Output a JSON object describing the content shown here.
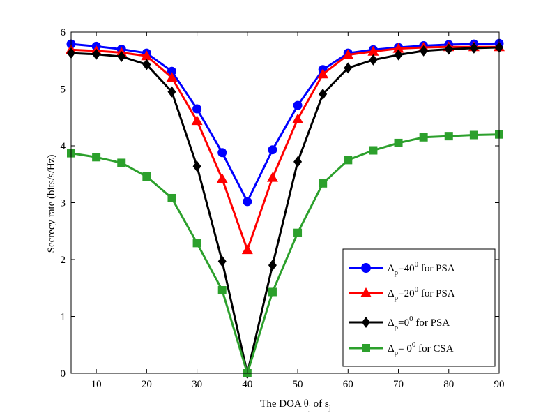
{
  "chart_data": {
    "type": "line",
    "title": "",
    "xlabel": {
      "prefix": "The DOA ",
      "symbol": "θ",
      "symbol_sub": "j",
      "middle": "  of s",
      "tail_sub": "j"
    },
    "ylabel": "Secrecy rate (bits/s/Hz)",
    "xlim": [
      5,
      90
    ],
    "ylim": [
      0,
      6
    ],
    "x_ticks": [
      10,
      20,
      30,
      40,
      50,
      60,
      70,
      80,
      90
    ],
    "y_ticks": [
      0,
      1,
      2,
      3,
      4,
      5,
      6
    ],
    "grid": false,
    "legend_position": "lower-right",
    "x": [
      5,
      10,
      15,
      20,
      25,
      30,
      35,
      40,
      45,
      50,
      55,
      60,
      65,
      70,
      75,
      80,
      85,
      90
    ],
    "series": [
      {
        "name": "Δp=40^0 for PSA",
        "legend": {
          "delta": "Δ",
          "sub": "p",
          "mid": "=40",
          "sup": "0",
          "tail": " for PSA"
        },
        "color": "#0000ff",
        "marker": "circle",
        "values": [
          5.79,
          5.75,
          5.7,
          5.63,
          5.31,
          4.65,
          3.88,
          3.02,
          3.93,
          4.71,
          5.34,
          5.63,
          5.69,
          5.73,
          5.76,
          5.78,
          5.79,
          5.8
        ]
      },
      {
        "name": "Δp=20^0 for PSA",
        "legend": {
          "delta": "Δ",
          "sub": "p",
          "mid": "=20",
          "sup": "0",
          "tail": " for PSA"
        },
        "color": "#ff0000",
        "marker": "triangle",
        "values": [
          5.69,
          5.67,
          5.64,
          5.58,
          5.2,
          4.44,
          3.42,
          2.17,
          3.44,
          4.47,
          5.26,
          5.6,
          5.66,
          5.71,
          5.73,
          5.74,
          5.74,
          5.74
        ]
      },
      {
        "name": "Δp=0^0 for PSA",
        "legend": {
          "delta": "Δ",
          "sub": "p",
          "mid": "=0",
          "sup": "0",
          "tail": " for PSA"
        },
        "color": "#000000",
        "marker": "diamond",
        "values": [
          5.63,
          5.61,
          5.57,
          5.43,
          4.95,
          3.64,
          1.97,
          0.0,
          1.9,
          3.72,
          4.91,
          5.37,
          5.51,
          5.6,
          5.67,
          5.7,
          5.72,
          5.73
        ]
      },
      {
        "name": "Δp= 0^0 for CSA",
        "legend": {
          "delta": "Δ",
          "sub": "p",
          "mid": "= 0",
          "sup": "0",
          "tail": " for CSA"
        },
        "color": "#2ca02c",
        "marker": "square",
        "values": [
          3.87,
          3.8,
          3.7,
          3.46,
          3.08,
          2.29,
          1.46,
          0.0,
          1.43,
          2.47,
          3.34,
          3.75,
          3.92,
          4.05,
          4.15,
          4.17,
          4.19,
          4.2
        ]
      }
    ]
  }
}
